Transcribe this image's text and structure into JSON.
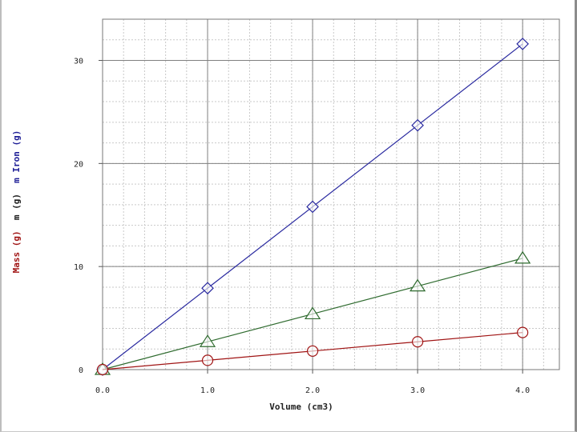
{
  "chart_data": {
    "type": "scatter",
    "xlabel": "Volume  (cm3)",
    "ylabel_segments": [
      {
        "text": "Mass (g)",
        "color": "#a01414"
      },
      {
        "text": "m (g)",
        "color": "#1a1a1a"
      },
      {
        "text": "m Iron (g)",
        "color": "#1e1e96"
      }
    ],
    "xlim": [
      0,
      4.35
    ],
    "ylim": [
      0,
      34
    ],
    "x_ticks": [
      0.0,
      1.0,
      2.0,
      3.0,
      4.0
    ],
    "x_tick_labels": [
      "0.0",
      "1.0",
      "2.0",
      "3.0",
      "4.0"
    ],
    "y_ticks": [
      0,
      10,
      20,
      30
    ],
    "y_tick_labels": [
      "0",
      "10",
      "20",
      "30"
    ],
    "grid": true,
    "series": [
      {
        "color": "#2a2aa0",
        "marker": "diamond",
        "x": [
          0,
          1,
          2,
          3,
          4
        ],
        "y": [
          0,
          7.9,
          15.8,
          23.7,
          31.6
        ]
      },
      {
        "color": "#2f6b2f",
        "marker": "triangle",
        "x": [
          0,
          1,
          2,
          3,
          4
        ],
        "y": [
          0,
          2.7,
          5.4,
          8.1,
          10.8
        ]
      },
      {
        "color": "#a01414",
        "marker": "circle",
        "x": [
          0,
          1,
          2,
          3,
          4
        ],
        "y": [
          0,
          0.9,
          1.8,
          2.7,
          3.6
        ]
      }
    ]
  }
}
